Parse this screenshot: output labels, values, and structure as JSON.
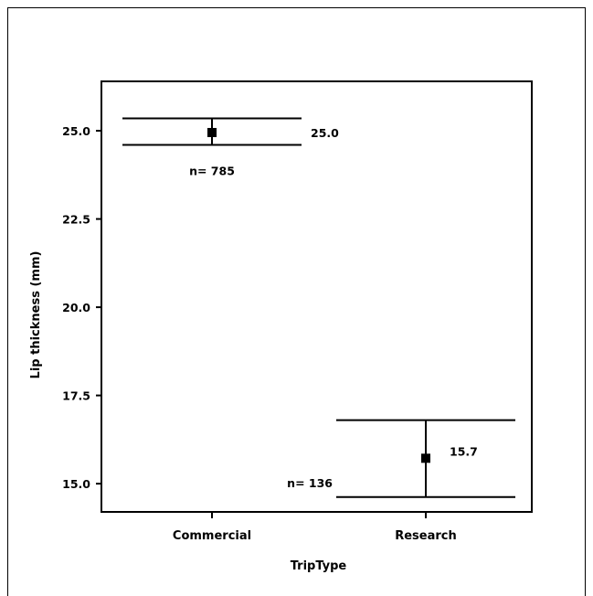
{
  "chart_data": {
    "type": "scatter",
    "title": "",
    "xlabel": "TripType",
    "ylabel": "Lip thickness (mm)",
    "categories": [
      "Commercial",
      "Research"
    ],
    "ylim": [
      14.2,
      26.4
    ],
    "yticks": [
      15.0,
      17.5,
      20.0,
      22.5,
      25.0
    ],
    "ytick_labels": [
      "15.0",
      "17.5",
      "20.0",
      "22.5",
      "25.0"
    ],
    "points": [
      {
        "category": "Commercial",
        "mean": 24.95,
        "lower": 24.6,
        "upper": 25.35,
        "value_label": "25.0",
        "n_label": "n= 785"
      },
      {
        "category": "Research",
        "mean": 15.72,
        "lower": 14.62,
        "upper": 16.8,
        "value_label": "15.7",
        "n_label": "n= 136"
      }
    ]
  }
}
